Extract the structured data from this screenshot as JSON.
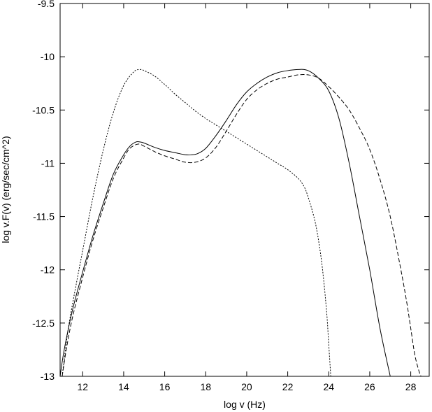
{
  "chart_data": {
    "type": "line",
    "title": "",
    "xlabel": "log v (Hz)",
    "ylabel": "log v.F(v) (erg/sec/cm^2)",
    "xlim": [
      10.9,
      28.9
    ],
    "ylim": [
      -13,
      -9.5
    ],
    "xticks": [
      12,
      14,
      16,
      18,
      20,
      22,
      24,
      26,
      28
    ],
    "xtick_labels": [
      "12",
      "14",
      "16",
      "18",
      "20",
      "22",
      "24",
      "26",
      "28"
    ],
    "yticks": [
      -13,
      -12.5,
      -12,
      -11.5,
      -11,
      -10.5,
      -10,
      -9.5
    ],
    "ytick_labels": [
      "-13",
      "-12.5",
      "-12",
      "-11.5",
      "-11",
      "-10.5",
      "-10",
      "-9.5"
    ],
    "grid": false,
    "legend": "none",
    "series": [
      {
        "style": "solid",
        "color": "#000000",
        "x": [
          10.9,
          11.1,
          11.5,
          12.0,
          12.5,
          13.0,
          13.5,
          14.0,
          14.3,
          14.6,
          14.8,
          15.0,
          15.5,
          16.0,
          16.5,
          17.0,
          17.3,
          17.6,
          18.0,
          18.5,
          19.0,
          19.5,
          20.0,
          20.5,
          21.0,
          21.5,
          22.0,
          22.5,
          22.8,
          23.1,
          23.5,
          24.0,
          24.5,
          25.0,
          25.5,
          26.0,
          26.5,
          27.0
        ],
        "y": [
          -13.0,
          -12.75,
          -12.38,
          -12.02,
          -11.68,
          -11.38,
          -11.1,
          -10.92,
          -10.84,
          -10.8,
          -10.8,
          -10.81,
          -10.85,
          -10.88,
          -10.9,
          -10.92,
          -10.92,
          -10.91,
          -10.86,
          -10.74,
          -10.6,
          -10.45,
          -10.33,
          -10.25,
          -10.19,
          -10.15,
          -10.13,
          -10.12,
          -10.12,
          -10.14,
          -10.2,
          -10.32,
          -10.58,
          -11.0,
          -11.5,
          -12.0,
          -12.55,
          -13.0
        ]
      },
      {
        "style": "dashed",
        "color": "#000000",
        "x": [
          11.0,
          11.2,
          11.5,
          12.0,
          12.5,
          13.0,
          13.5,
          14.0,
          14.3,
          14.7,
          15.0,
          15.5,
          16.0,
          16.5,
          17.0,
          17.5,
          18.0,
          18.5,
          19.0,
          19.5,
          20.0,
          20.5,
          21.0,
          21.5,
          22.0,
          22.5,
          23.0,
          23.5,
          24.0,
          24.5,
          25.0,
          25.5,
          26.0,
          26.5,
          27.0,
          27.5,
          27.8,
          28.0,
          28.2,
          28.4,
          28.5
        ],
        "y": [
          -13.0,
          -12.75,
          -12.45,
          -12.07,
          -11.72,
          -11.42,
          -11.14,
          -10.95,
          -10.86,
          -10.82,
          -10.84,
          -10.89,
          -10.93,
          -10.96,
          -10.99,
          -10.99,
          -10.95,
          -10.85,
          -10.7,
          -10.54,
          -10.4,
          -10.31,
          -10.25,
          -10.21,
          -10.19,
          -10.17,
          -10.17,
          -10.2,
          -10.28,
          -10.38,
          -10.5,
          -10.67,
          -10.87,
          -11.15,
          -11.5,
          -11.98,
          -12.3,
          -12.55,
          -12.8,
          -12.95,
          -13.0
        ]
      },
      {
        "style": "dotted",
        "color": "#000000",
        "x": [
          11.0,
          11.3,
          11.7,
          12.0,
          12.5,
          13.0,
          13.5,
          14.0,
          14.5,
          14.8,
          15.0,
          15.5,
          16.0,
          16.5,
          17.0,
          17.5,
          18.0,
          18.5,
          19.0,
          19.5,
          20.0,
          20.5,
          21.0,
          21.5,
          22.0,
          22.5,
          22.8,
          23.0,
          23.3,
          23.5,
          23.7,
          23.9,
          24.0,
          24.1
        ],
        "y": [
          -13.0,
          -12.55,
          -12.12,
          -11.82,
          -11.32,
          -10.88,
          -10.52,
          -10.27,
          -10.14,
          -10.12,
          -10.13,
          -10.18,
          -10.26,
          -10.35,
          -10.43,
          -10.51,
          -10.58,
          -10.64,
          -10.7,
          -10.76,
          -10.82,
          -10.88,
          -10.94,
          -11.0,
          -11.06,
          -11.14,
          -11.22,
          -11.32,
          -11.52,
          -11.72,
          -12.0,
          -12.4,
          -12.7,
          -13.0
        ]
      }
    ]
  }
}
